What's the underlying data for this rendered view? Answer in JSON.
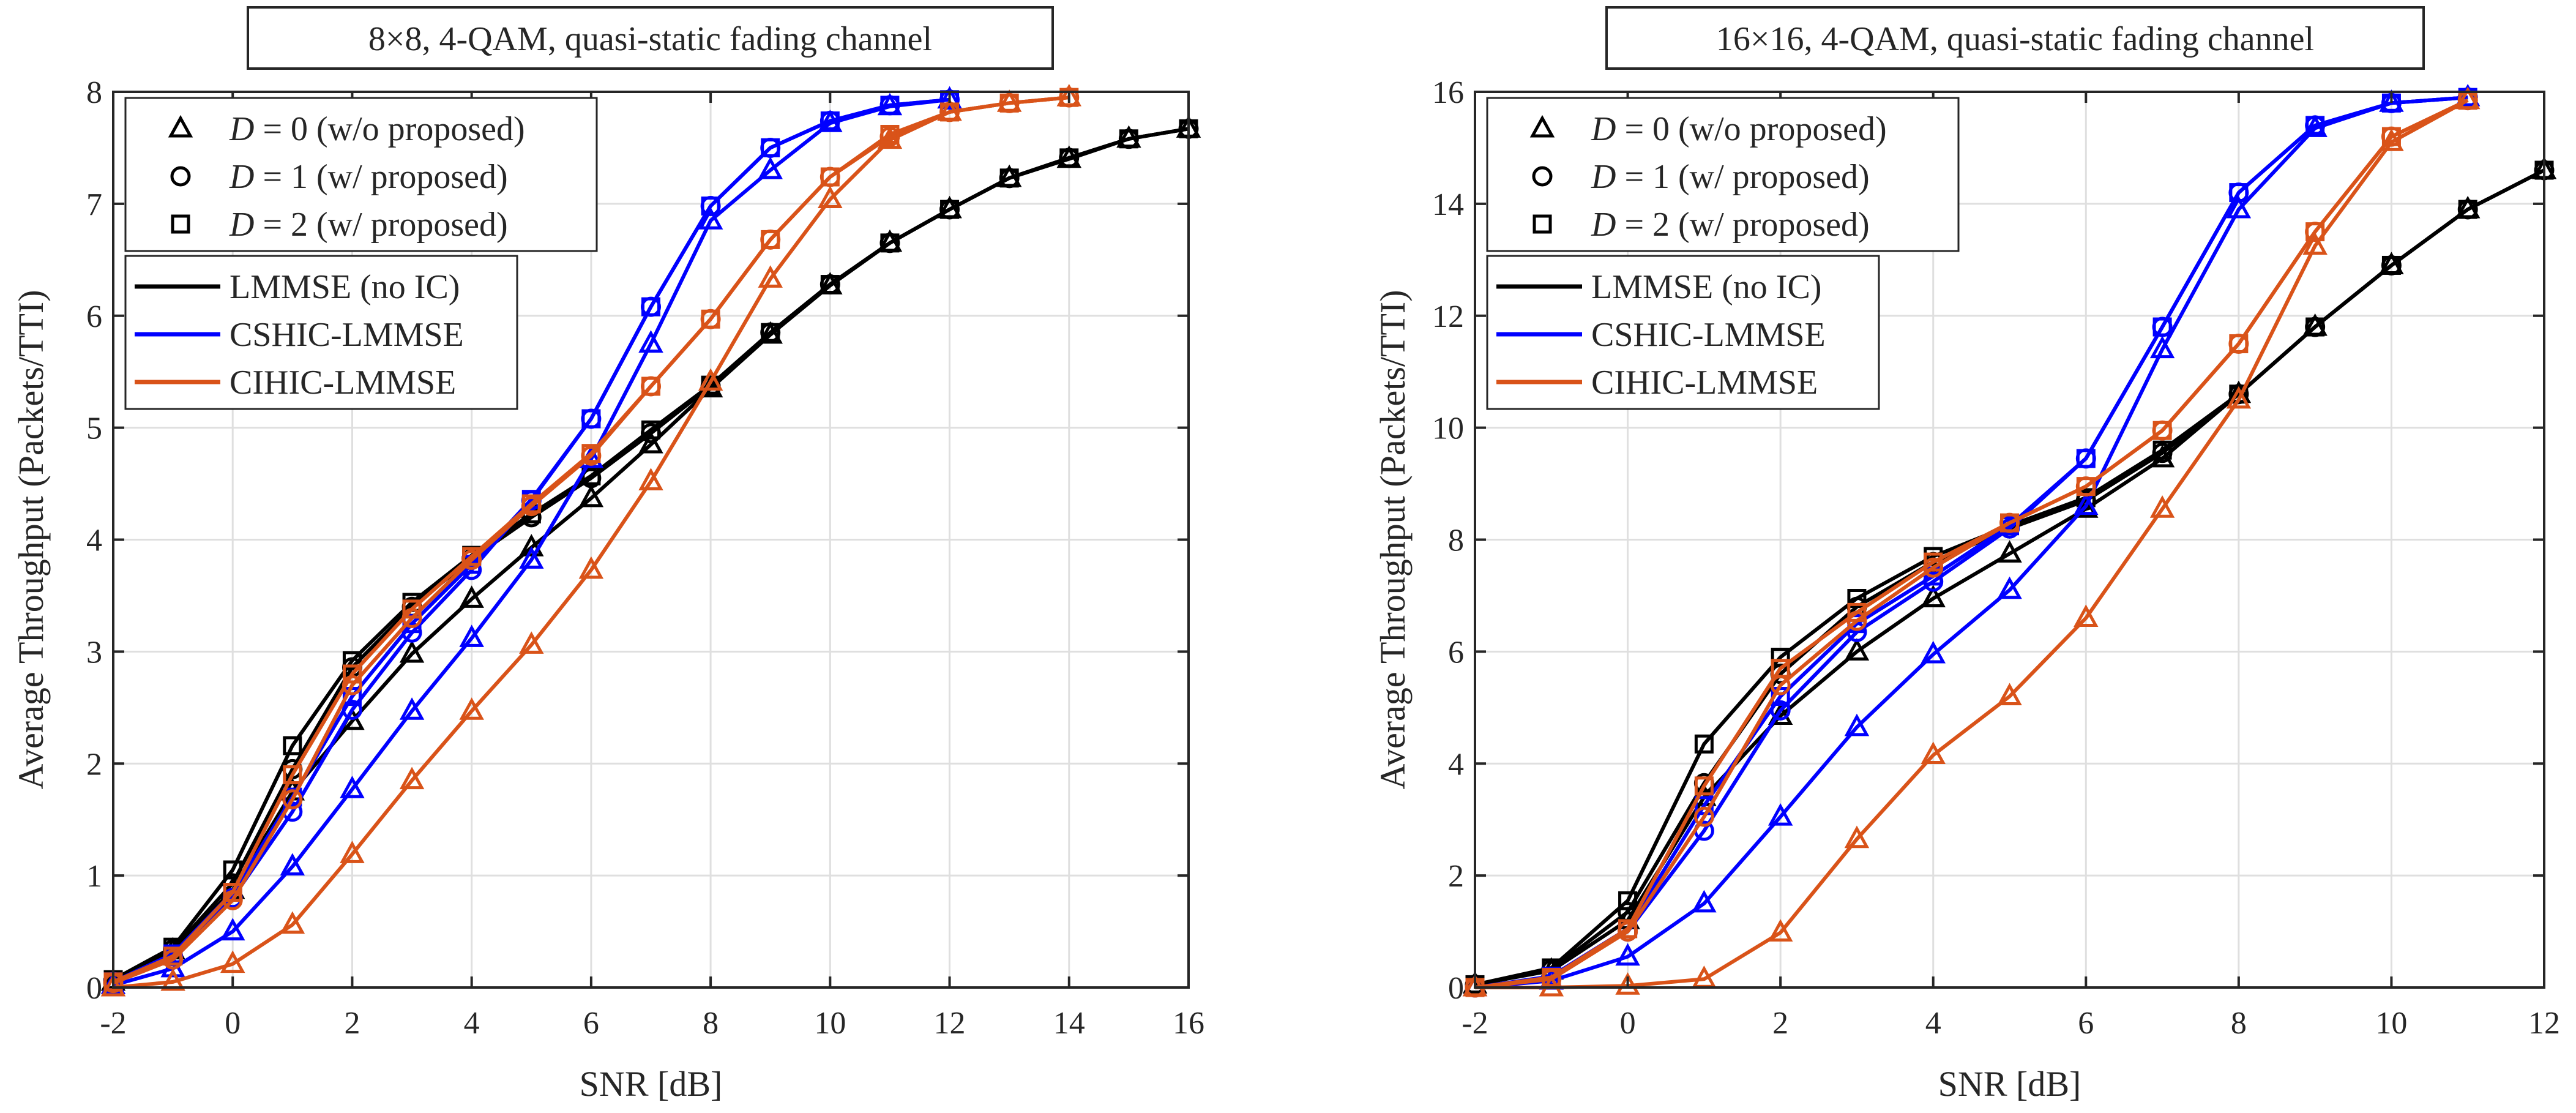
{
  "chart_data": [
    {
      "type": "line",
      "title": "8×8, 4-QAM, quasi-static fading channel",
      "xlabel": "SNR [dB]",
      "ylabel": "Average Throughput (Packets/TTI)",
      "xlim": [
        -2,
        16
      ],
      "ylim": [
        0,
        8
      ],
      "xticks": [
        -2,
        0,
        2,
        4,
        6,
        8,
        10,
        12,
        14,
        16
      ],
      "yticks": [
        0,
        1,
        2,
        3,
        4,
        5,
        6,
        7,
        8
      ],
      "grid": true,
      "marker_legend": [
        {
          "marker": "triangle",
          "label": "D = 0 (w/o proposed)",
          "var": "D",
          "rest": " = 0 (w/o proposed)"
        },
        {
          "marker": "circle",
          "label": "D = 1 (w/ proposed)",
          "var": "D",
          "rest": " = 1 (w/ proposed)"
        },
        {
          "marker": "square",
          "label": "D = 2 (w/ proposed)",
          "var": "D",
          "rest": " = 2 (w/ proposed)"
        }
      ],
      "color_legend": [
        {
          "label": "LMMSE (no IC)",
          "color": "#000000"
        },
        {
          "label": "CSHIC-LMMSE",
          "color": "#0000ff"
        },
        {
          "label": "CIHIC-LMMSE",
          "color": "#d95319"
        }
      ],
      "series": [
        {
          "name": "LMMSE (no IC), D=0",
          "color": "#000000",
          "marker": "triangle",
          "x": [
            -2,
            -1,
            0,
            1,
            2,
            3,
            4,
            5,
            6,
            7,
            8,
            9,
            10,
            11,
            12,
            13,
            14,
            15,
            16
          ],
          "y": [
            0.05,
            0.33,
            0.87,
            1.75,
            2.38,
            2.98,
            3.47,
            3.93,
            4.37,
            4.85,
            5.35,
            5.83,
            6.27,
            6.65,
            6.95,
            7.23,
            7.4,
            7.58,
            7.67
          ]
        },
        {
          "name": "LMMSE (no IC), D=1",
          "color": "#000000",
          "marker": "circle",
          "x": [
            -2,
            -1,
            0,
            1,
            2,
            3,
            4,
            5,
            6,
            7,
            8,
            9,
            10,
            11,
            12,
            13,
            14,
            15,
            16
          ],
          "y": [
            0.06,
            0.34,
            0.93,
            1.95,
            2.86,
            3.4,
            3.83,
            4.2,
            4.55,
            4.95,
            5.37,
            5.85,
            6.28,
            6.65,
            6.95,
            7.23,
            7.41,
            7.58,
            7.67
          ]
        },
        {
          "name": "LMMSE (no IC), D=2",
          "color": "#000000",
          "marker": "square",
          "x": [
            -2,
            -1,
            0,
            1,
            2,
            3,
            4,
            5,
            6,
            7,
            8,
            9,
            10,
            11,
            12,
            13,
            14,
            15,
            16
          ],
          "y": [
            0.07,
            0.36,
            1.05,
            2.16,
            2.92,
            3.44,
            3.86,
            4.23,
            4.57,
            4.98,
            5.38,
            5.85,
            6.28,
            6.65,
            6.95,
            7.23,
            7.41,
            7.58,
            7.67
          ]
        },
        {
          "name": "CSHIC-LMMSE, D=0",
          "color": "#0000ff",
          "marker": "triangle",
          "x": [
            -2,
            -1,
            0,
            1,
            2,
            3,
            4,
            5,
            6,
            7,
            8,
            9,
            10,
            11,
            12
          ],
          "y": [
            0.02,
            0.17,
            0.5,
            1.08,
            1.77,
            2.47,
            3.12,
            3.82,
            4.72,
            5.75,
            6.85,
            7.3,
            7.72,
            7.87,
            7.93
          ]
        },
        {
          "name": "CSHIC-LMMSE, D=1",
          "color": "#0000ff",
          "marker": "circle",
          "x": [
            -2,
            -1,
            0,
            1,
            2,
            3,
            4,
            5,
            6,
            7,
            8,
            9,
            10,
            11,
            12
          ],
          "y": [
            0.05,
            0.28,
            0.8,
            1.57,
            2.48,
            3.17,
            3.73,
            4.35,
            5.08,
            6.08,
            6.98,
            7.5,
            7.74,
            7.88,
            7.93
          ]
        },
        {
          "name": "CSHIC-LMMSE, D=2",
          "color": "#0000ff",
          "marker": "square",
          "x": [
            -2,
            -1,
            0,
            1,
            2,
            3,
            4,
            5,
            6,
            7,
            8,
            9,
            10,
            11,
            12
          ],
          "y": [
            0.05,
            0.3,
            0.85,
            1.7,
            2.6,
            3.25,
            3.78,
            4.36,
            5.08,
            6.08,
            6.98,
            7.5,
            7.74,
            7.88,
            7.93
          ]
        },
        {
          "name": "CIHIC-LMMSE, D=0",
          "color": "#d95319",
          "marker": "triangle",
          "x": [
            -2,
            -1,
            0,
            1,
            2,
            3,
            4,
            5,
            6,
            7,
            8,
            9,
            10,
            11,
            12,
            13,
            14
          ],
          "y": [
            0.0,
            0.05,
            0.21,
            0.56,
            1.19,
            1.85,
            2.47,
            3.06,
            3.73,
            4.52,
            5.41,
            6.33,
            7.04,
            7.57,
            7.82,
            7.9,
            7.95
          ]
        },
        {
          "name": "CIHIC-LMMSE, D=1",
          "color": "#d95319",
          "marker": "circle",
          "x": [
            -2,
            -1,
            0,
            1,
            2,
            3,
            4,
            5,
            6,
            7,
            8,
            9,
            10,
            11,
            12,
            13,
            14
          ],
          "y": [
            0.04,
            0.25,
            0.78,
            1.68,
            2.7,
            3.3,
            3.82,
            4.3,
            4.75,
            5.37,
            5.97,
            6.68,
            7.24,
            7.6,
            7.82,
            7.9,
            7.95
          ]
        },
        {
          "name": "CIHIC-LMMSE, D=2",
          "color": "#d95319",
          "marker": "square",
          "x": [
            -2,
            -1,
            0,
            1,
            2,
            3,
            4,
            5,
            6,
            7,
            8,
            9,
            10,
            11,
            12,
            13,
            14
          ],
          "y": [
            0.05,
            0.28,
            0.85,
            1.9,
            2.8,
            3.38,
            3.85,
            4.32,
            4.77,
            5.37,
            5.97,
            6.68,
            7.24,
            7.62,
            7.82,
            7.9,
            7.95
          ]
        }
      ]
    },
    {
      "type": "line",
      "title": "16×16, 4-QAM, quasi-static fading channel",
      "xlabel": "SNR [dB]",
      "ylabel": "Average Throughput (Packets/TTI)",
      "xlim": [
        -2,
        12
      ],
      "ylim": [
        0,
        16
      ],
      "xticks": [
        -2,
        0,
        2,
        4,
        6,
        8,
        10,
        12
      ],
      "yticks": [
        0,
        2,
        4,
        6,
        8,
        10,
        12,
        14,
        16
      ],
      "grid": true,
      "marker_legend": [
        {
          "marker": "triangle",
          "label": "D = 0 (w/o proposed)",
          "var": "D",
          "rest": " = 0 (w/o proposed)"
        },
        {
          "marker": "circle",
          "label": "D = 1 (w/ proposed)",
          "var": "D",
          "rest": " = 1 (w/ proposed)"
        },
        {
          "marker": "square",
          "label": "D = 2 (w/ proposed)",
          "var": "D",
          "rest": " = 2 (w/ proposed)"
        }
      ],
      "color_legend": [
        {
          "label": "LMMSE (no IC)",
          "color": "#000000"
        },
        {
          "label": "CSHIC-LMMSE",
          "color": "#0000ff"
        },
        {
          "label": "CIHIC-LMMSE",
          "color": "#d95319"
        }
      ],
      "series": [
        {
          "name": "LMMSE (no IC), D=0",
          "color": "#000000",
          "marker": "triangle",
          "x": [
            -2,
            -1,
            0,
            1,
            2,
            3,
            4,
            5,
            6,
            7,
            8,
            9,
            10,
            11,
            12
          ],
          "y": [
            0.05,
            0.3,
            1.2,
            3.4,
            4.85,
            6.0,
            6.95,
            7.75,
            8.55,
            9.45,
            10.6,
            11.8,
            12.9,
            13.9,
            14.6
          ]
        },
        {
          "name": "LMMSE (no IC), D=1",
          "color": "#000000",
          "marker": "circle",
          "x": [
            -2,
            -1,
            0,
            1,
            2,
            3,
            4,
            5,
            6,
            7,
            8,
            9,
            10,
            11,
            12
          ],
          "y": [
            0.05,
            0.32,
            1.35,
            3.65,
            5.6,
            6.8,
            7.6,
            8.2,
            8.7,
            9.55,
            10.6,
            11.8,
            12.9,
            13.9,
            14.6
          ]
        },
        {
          "name": "LMMSE (no IC), D=2",
          "color": "#000000",
          "marker": "square",
          "x": [
            -2,
            -1,
            0,
            1,
            2,
            3,
            4,
            5,
            6,
            7,
            8,
            9,
            10,
            11,
            12
          ],
          "y": [
            0.05,
            0.35,
            1.55,
            4.35,
            5.9,
            6.95,
            7.7,
            8.25,
            8.75,
            9.6,
            10.6,
            11.8,
            12.9,
            13.9,
            14.6
          ]
        },
        {
          "name": "CSHIC-LMMSE, D=0",
          "color": "#0000ff",
          "marker": "triangle",
          "x": [
            -2,
            -1,
            0,
            1,
            2,
            3,
            4,
            5,
            6,
            7,
            8,
            9,
            10,
            11
          ],
          "y": [
            0.0,
            0.12,
            0.55,
            1.5,
            3.05,
            4.65,
            5.95,
            7.1,
            8.6,
            11.4,
            13.9,
            15.35,
            15.8,
            15.9
          ]
        },
        {
          "name": "CSHIC-LMMSE, D=1",
          "color": "#0000ff",
          "marker": "circle",
          "x": [
            -2,
            -1,
            0,
            1,
            2,
            3,
            4,
            5,
            6,
            7,
            8,
            9,
            10,
            11
          ],
          "y": [
            0.0,
            0.18,
            1.0,
            2.8,
            4.95,
            6.35,
            7.25,
            8.2,
            9.45,
            11.8,
            14.2,
            15.4,
            15.8,
            15.9
          ]
        },
        {
          "name": "CSHIC-LMMSE, D=2",
          "color": "#0000ff",
          "marker": "square",
          "x": [
            -2,
            -1,
            0,
            1,
            2,
            3,
            4,
            5,
            6,
            7,
            8,
            9,
            10,
            11
          ],
          "y": [
            0.0,
            0.2,
            1.05,
            3.25,
            5.2,
            6.5,
            7.35,
            8.25,
            9.45,
            11.8,
            14.2,
            15.4,
            15.8,
            15.9
          ]
        },
        {
          "name": "CIHIC-LMMSE, D=0",
          "color": "#d95319",
          "marker": "triangle",
          "x": [
            -2,
            -1,
            0,
            1,
            2,
            3,
            4,
            5,
            6,
            7,
            8,
            9,
            10,
            11
          ],
          "y": [
            0.0,
            0.0,
            0.03,
            0.15,
            0.98,
            2.65,
            4.15,
            5.2,
            6.6,
            8.55,
            10.5,
            13.25,
            15.1,
            15.85
          ]
        },
        {
          "name": "CIHIC-LMMSE, D=1",
          "color": "#d95319",
          "marker": "circle",
          "x": [
            -2,
            -1,
            0,
            1,
            2,
            3,
            4,
            5,
            6,
            7,
            8,
            9,
            10,
            11
          ],
          "y": [
            0.0,
            0.15,
            1.0,
            3.05,
            5.4,
            6.55,
            7.5,
            8.3,
            8.95,
            9.95,
            11.5,
            13.5,
            15.2,
            15.85
          ]
        },
        {
          "name": "CIHIC-LMMSE, D=2",
          "color": "#d95319",
          "marker": "square",
          "x": [
            -2,
            -1,
            0,
            1,
            2,
            3,
            4,
            5,
            6,
            7,
            8,
            9,
            10,
            11
          ],
          "y": [
            0.0,
            0.18,
            1.05,
            3.6,
            5.7,
            6.7,
            7.6,
            8.3,
            8.95,
            9.95,
            11.5,
            13.5,
            15.2,
            15.85
          ]
        }
      ]
    }
  ]
}
